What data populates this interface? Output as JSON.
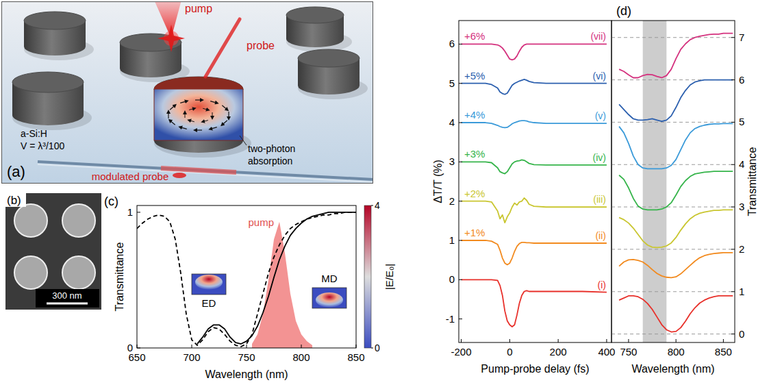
{
  "panel_a": {
    "label": "(a)",
    "pump": "pump",
    "probe": "probe",
    "material": "a-Si:H",
    "volume": "V = λ³/100",
    "absorption": "two-photon absorption",
    "output": "modulated probe"
  },
  "panel_b": {
    "label": "(b)",
    "scale_bar": "300 nm"
  },
  "chart_data": [
    {
      "type": "line",
      "label": "(c)",
      "xlabel": "Wavelength (nm)",
      "ylabel": "Transmittance",
      "x": [
        650,
        655,
        660,
        665,
        670,
        675,
        680,
        685,
        690,
        695,
        700,
        705,
        710,
        715,
        720,
        725,
        730,
        735,
        740,
        745,
        750,
        755,
        760,
        765,
        770,
        775,
        780,
        785,
        790,
        795,
        800,
        805,
        810,
        815,
        820,
        825,
        830,
        835,
        840,
        845,
        850
      ],
      "xlim": [
        650,
        850
      ],
      "xticks": [
        650,
        700,
        750,
        800,
        850
      ],
      "ylim": [
        0,
        1.05
      ],
      "yticks": [
        0,
        1
      ],
      "series": [
        {
          "color": "#000000",
          "line_style": "solid",
          "values": [
            null,
            null,
            null,
            null,
            null,
            null,
            null,
            null,
            null,
            null,
            null,
            0.03,
            0.08,
            0.14,
            0.17,
            0.17,
            0.14,
            0.08,
            0.04,
            0.03,
            0.05,
            0.09,
            0.16,
            0.26,
            0.38,
            0.52,
            0.65,
            0.75,
            0.83,
            0.88,
            0.92,
            0.95,
            0.97,
            0.98,
            0.99,
            1.0,
            1,
            1,
            1,
            1,
            1
          ]
        },
        {
          "color": "#000000",
          "line_style": "dashed",
          "values": [
            0.88,
            0.92,
            0.95,
            0.97,
            0.98,
            0.97,
            0.93,
            0.8,
            0.55,
            0.25,
            0.06,
            0.02,
            0.06,
            0.12,
            0.15,
            0.14,
            0.1,
            0.05,
            0.02,
            0.01,
            0.03,
            0.1,
            0.25,
            0.4,
            0.55,
            0.67,
            0.76,
            0.83,
            0.88,
            0.91,
            0.93,
            0.95,
            0.96,
            0.97,
            0.98,
            0.98,
            0.99,
            0.99,
            1.0,
            1.0,
            1.0
          ]
        },
        {
          "name": "pump",
          "type": "area",
          "color": "#f07878",
          "values": [
            null,
            null,
            null,
            null,
            null,
            null,
            null,
            null,
            null,
            null,
            null,
            null,
            null,
            null,
            null,
            null,
            null,
            null,
            null,
            null,
            null,
            0.03,
            0.1,
            0.25,
            0.5,
            0.8,
            0.93,
            0.7,
            0.4,
            0.2,
            0.1,
            0.05,
            0.02,
            null,
            null,
            null,
            null,
            null,
            null,
            null,
            null
          ]
        }
      ],
      "annotations": [
        "ED",
        "MD"
      ],
      "colorbar": {
        "label": "|E/E₀|",
        "range": [
          0,
          4
        ],
        "ticks": [
          0,
          4
        ]
      }
    },
    {
      "type": "line",
      "label": "(d)",
      "xlabel": "Pump-probe delay (fs)",
      "ylabel": "ΔT/T (%)",
      "x": [
        -200,
        -150,
        -100,
        -75,
        -50,
        -40,
        -30,
        -20,
        -10,
        0,
        10,
        20,
        30,
        40,
        50,
        60,
        70,
        80,
        100,
        150,
        200,
        300,
        400
      ],
      "xlim": [
        -210,
        420
      ],
      "xticks": [
        -200,
        0,
        200,
        400
      ],
      "ylim": [
        -1.6,
        6.6
      ],
      "yticks": [
        -1,
        0,
        1,
        2,
        3,
        4,
        5,
        6
      ],
      "series": [
        {
          "label": "(i)",
          "color": "#e8302a",
          "values": [
            0,
            0,
            0,
            0,
            -0.02,
            -0.15,
            -0.4,
            -0.8,
            -1.05,
            -1.15,
            -1.2,
            -1.15,
            -0.9,
            -0.6,
            -0.4,
            -0.3,
            -0.28,
            -0.3,
            -0.3,
            -0.3,
            -0.3,
            -0.3,
            -0.32
          ]
        },
        {
          "name": "+1%",
          "label": "(ii)",
          "color": "#f28a1e",
          "values": [
            1,
            1,
            1,
            0.98,
            0.9,
            0.75,
            0.55,
            0.42,
            0.38,
            0.42,
            0.55,
            0.72,
            0.85,
            0.92,
            0.95,
            0.95,
            0.94,
            0.94,
            0.93,
            0.93,
            0.93,
            0.93,
            0.93
          ]
        },
        {
          "name": "+2%",
          "label": "(iii)",
          "color": "#c9c630",
          "values": [
            2,
            2,
            2,
            1.98,
            1.75,
            1.55,
            1.65,
            1.45,
            1.6,
            1.7,
            1.85,
            1.95,
            1.9,
            1.98,
            2,
            2.08,
            2.02,
            1.92,
            1.87,
            1.85,
            1.85,
            1.85,
            1.85
          ]
        },
        {
          "name": "+3%",
          "label": "(iv)",
          "color": "#35b44a",
          "values": [
            3,
            3,
            3,
            2.98,
            2.85,
            2.75,
            2.72,
            2.7,
            2.75,
            2.85,
            2.95,
            3,
            3.02,
            3.03,
            3.05,
            3.04,
            3,
            2.96,
            2.93,
            2.92,
            2.92,
            2.92,
            2.92
          ]
        },
        {
          "name": "+4%",
          "label": "(v)",
          "color": "#3a9ad9",
          "values": [
            4,
            4,
            4,
            3.98,
            3.93,
            3.9,
            3.88,
            3.87,
            3.88,
            3.92,
            3.97,
            4,
            4.02,
            4.04,
            4.05,
            4.05,
            4.04,
            4.02,
            4,
            3.98,
            3.98,
            3.98,
            3.98
          ]
        },
        {
          "name": "+5%",
          "label": "(vi)",
          "color": "#2b5fae",
          "values": [
            5,
            5,
            5,
            4.97,
            4.88,
            4.78,
            4.74,
            4.72,
            4.75,
            4.85,
            4.95,
            5,
            5.03,
            5.06,
            5.08,
            5.1,
            5.08,
            5.05,
            5.02,
            5,
            5,
            5,
            5
          ]
        },
        {
          "name": "+6%",
          "label": "(vii)",
          "color": "#d4317e",
          "values": [
            6,
            6,
            6,
            6,
            5.98,
            5.95,
            5.9,
            5.82,
            5.72,
            5.62,
            5.6,
            5.62,
            5.7,
            5.82,
            5.92,
            5.98,
            6,
            6,
            6,
            6,
            6,
            6,
            6
          ]
        }
      ]
    },
    {
      "type": "line",
      "xlabel": "Wavelength (nm)",
      "ylabel": "Transmittance",
      "x": [
        740,
        745,
        750,
        755,
        760,
        765,
        770,
        775,
        780,
        785,
        790,
        795,
        800,
        805,
        810,
        815,
        820,
        825,
        830,
        835,
        840,
        845,
        850,
        855,
        860
      ],
      "xlim": [
        732,
        862
      ],
      "xticks": [
        750,
        800,
        850
      ],
      "ylim": [
        -0.2,
        7.4
      ],
      "yticks": [
        0,
        1,
        2,
        3,
        4,
        5,
        6,
        7
      ],
      "grid": true,
      "band": [
        765,
        790
      ],
      "series": [
        {
          "color": "#e8302a",
          "values": [
            0.8,
            0.85,
            0.9,
            0.9,
            0.88,
            0.82,
            0.72,
            0.58,
            0.4,
            0.22,
            0.1,
            0.05,
            0.06,
            0.15,
            0.3,
            0.48,
            0.62,
            0.73,
            0.8,
            0.85,
            0.88,
            0.9,
            0.9,
            0.9,
            0.9
          ]
        },
        {
          "color": "#f28a1e",
          "values": [
            1.6,
            1.7,
            1.75,
            1.76,
            1.74,
            1.7,
            1.62,
            1.52,
            1.43,
            1.37,
            1.34,
            1.33,
            1.35,
            1.42,
            1.52,
            1.62,
            1.72,
            1.8,
            1.85,
            1.88,
            1.9,
            1.91,
            1.92,
            1.92,
            1.92
          ]
        },
        {
          "color": "#c9c630",
          "values": [
            2.75,
            2.7,
            2.62,
            2.5,
            2.35,
            2.2,
            2.1,
            2.05,
            2.04,
            2.05,
            2.08,
            2.15,
            2.28,
            2.45,
            2.6,
            2.72,
            2.8,
            2.85,
            2.88,
            2.9,
            2.92,
            2.92,
            2.93,
            2.93,
            2.93
          ]
        },
        {
          "color": "#35b44a",
          "values": [
            3.75,
            3.65,
            3.45,
            3.2,
            3.02,
            2.95,
            2.93,
            2.93,
            2.93,
            2.95,
            3,
            3.1,
            3.28,
            3.48,
            3.62,
            3.72,
            3.78,
            3.8,
            3.82,
            3.83,
            3.84,
            3.84,
            3.84,
            3.84,
            3.84
          ]
        },
        {
          "color": "#3a9ad9",
          "values": [
            4.9,
            4.75,
            4.5,
            4.2,
            4,
            3.92,
            3.9,
            3.9,
            3.9,
            3.9,
            3.92,
            3.98,
            4.12,
            4.35,
            4.58,
            4.75,
            4.85,
            4.9,
            4.93,
            4.95,
            4.96,
            4.96,
            4.97,
            4.97,
            4.97
          ]
        },
        {
          "color": "#2b5fae",
          "values": [
            5.42,
            5.3,
            5.18,
            5.08,
            5.05,
            5.05,
            5.06,
            5.08,
            5.05,
            5.02,
            5.05,
            5.15,
            5.35,
            5.58,
            5.75,
            5.88,
            5.95,
            5.98,
            6,
            6,
            6,
            6,
            6,
            6,
            6
          ]
        },
        {
          "color": "#d4317e",
          "values": [
            6.25,
            6.2,
            6.12,
            6.05,
            6.05,
            6.1,
            6.13,
            6.12,
            6.08,
            6.05,
            6.1,
            6.25,
            6.5,
            6.72,
            6.85,
            6.95,
            7,
            7.03,
            7.05,
            7.07,
            7.08,
            7.08,
            7.1,
            7.1,
            7.1
          ]
        }
      ]
    }
  ]
}
